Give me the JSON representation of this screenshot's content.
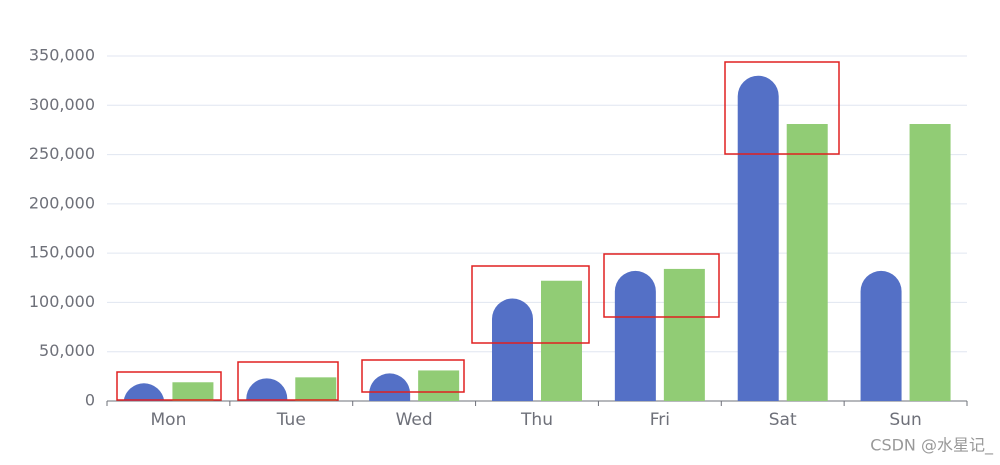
{
  "chart_data": {
    "type": "bar",
    "categories": [
      "Mon",
      "Tue",
      "Wed",
      "Thu",
      "Fri",
      "Sat",
      "Sun"
    ],
    "series": [
      {
        "color": "#5470c6",
        "values": [
          18000,
          23000,
          28000,
          104000,
          132000,
          330000,
          132000
        ]
      },
      {
        "color": "#91cc75",
        "values": [
          19000,
          24000,
          31000,
          122000,
          134000,
          281000,
          281000
        ]
      }
    ],
    "ylim": [
      0,
      350000
    ],
    "yticks": [
      0,
      {
        "value": 50000,
        "label": "50,000"
      },
      {
        "value": 100000,
        "label": "100,000"
      },
      {
        "value": 150000,
        "label": "150,000"
      },
      {
        "value": 200000,
        "label": "200,000"
      },
      {
        "value": 250000,
        "label": "250,000"
      },
      {
        "value": 300000,
        "label": "300,000"
      },
      {
        "value": 350000,
        "label": "350,000"
      }
    ],
    "grid": true
  },
  "watermark": "CSDN @水星记_"
}
